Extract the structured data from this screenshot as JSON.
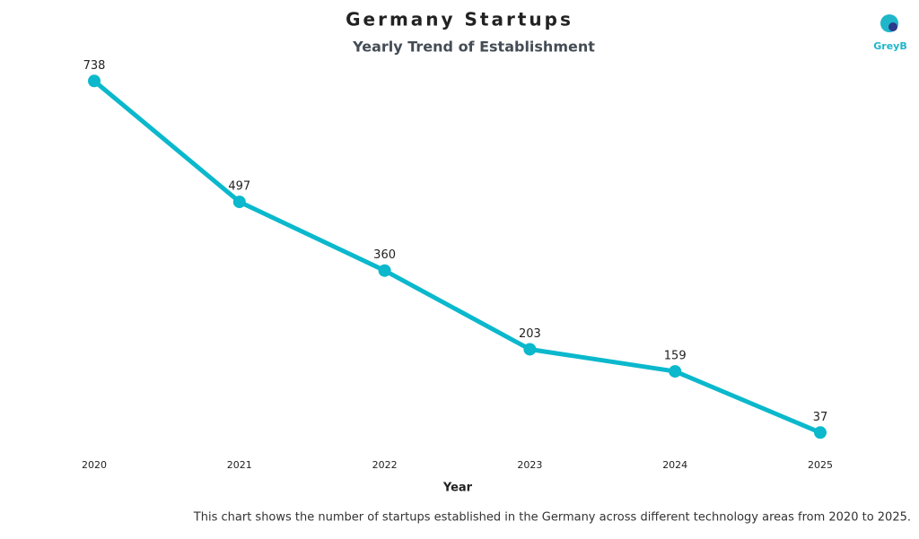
{
  "chart_data": {
    "type": "line",
    "title": "Germany Startups",
    "subtitle": "Yearly Trend of Establishment",
    "x_label": "Year",
    "categories": [
      "2020",
      "2021",
      "2022",
      "2023",
      "2024",
      "2025"
    ],
    "values": [
      738,
      497,
      360,
      203,
      159,
      37
    ],
    "color": "#0bb8cc",
    "caption": "This chart shows the number of startups established in the Germany across different technology areas from 2020 to 2025.",
    "logo": "GreyB"
  }
}
